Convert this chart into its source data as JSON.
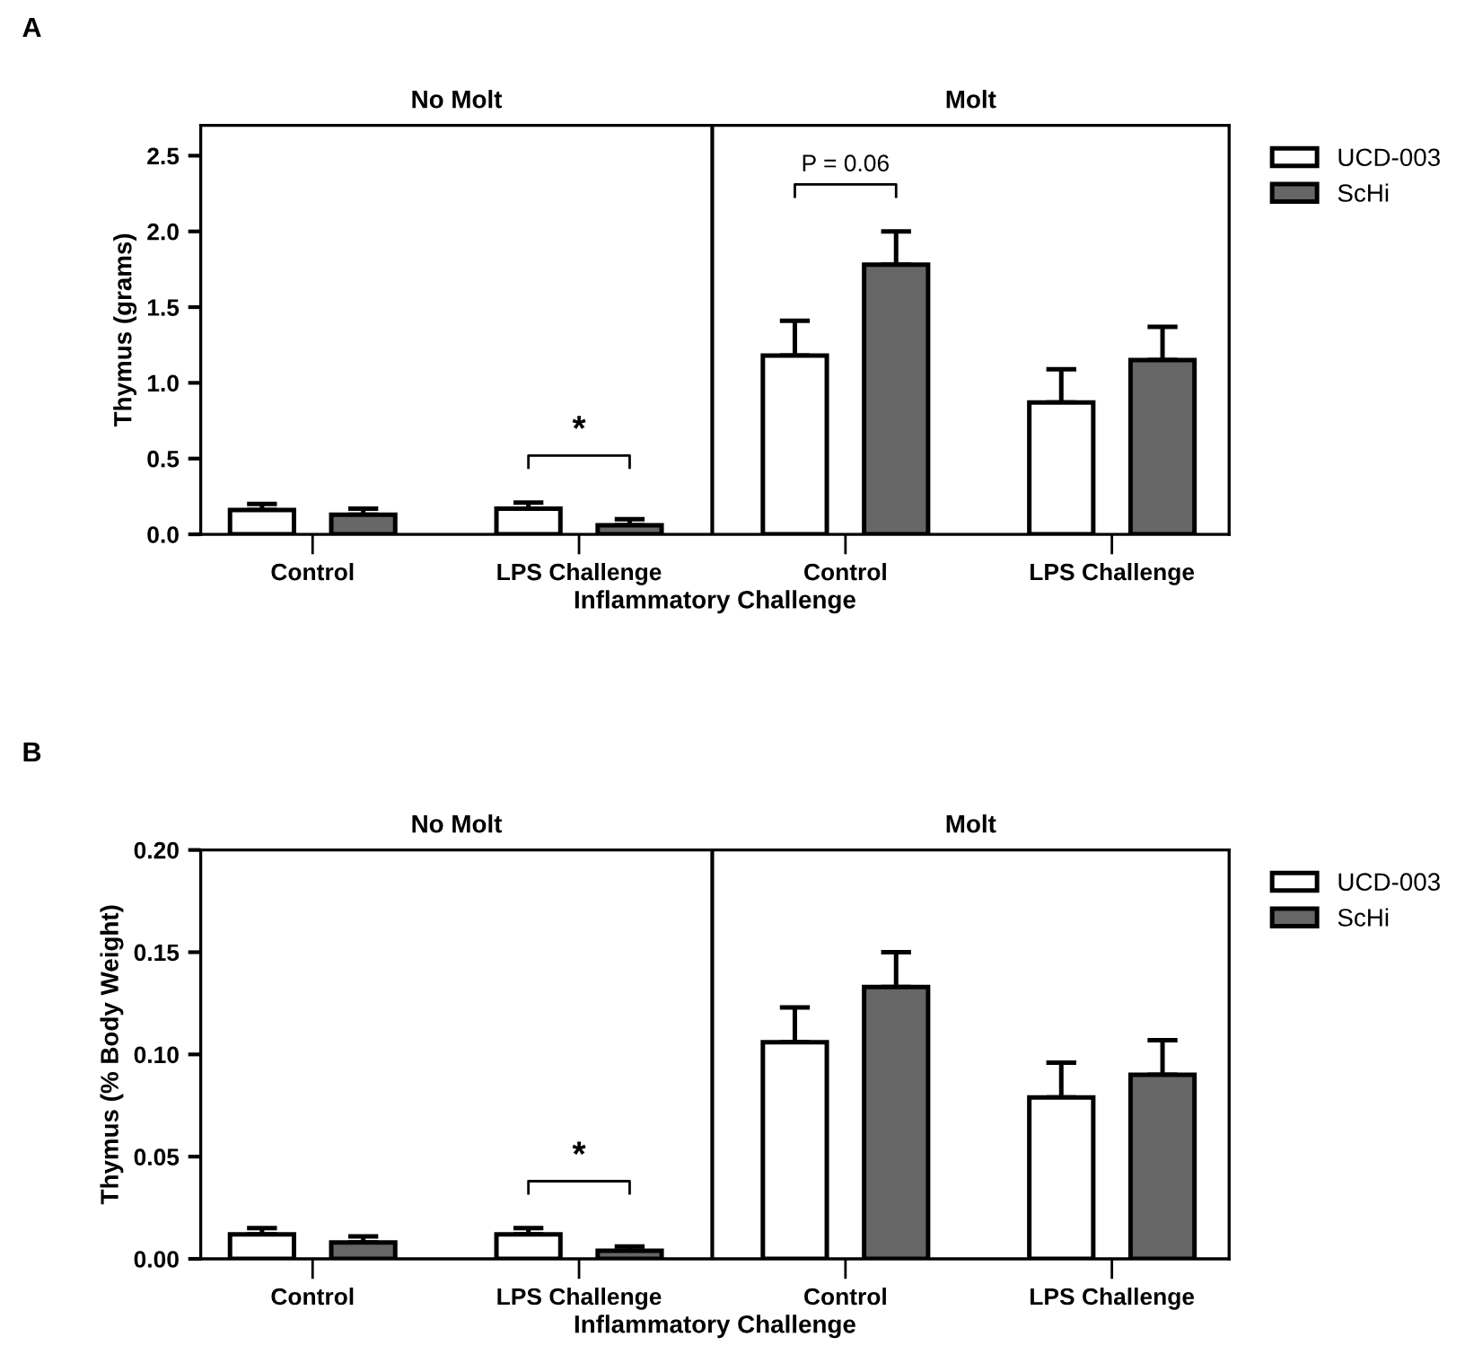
{
  "chart_data": [
    {
      "type": "bar",
      "title": "A",
      "xlabel": "Inflammatory Challenge",
      "ylabel": "Thymus (grams)",
      "categories": [
        "Control",
        "LPS Challenge",
        "Control",
        "LPS Challenge"
      ],
      "series": [
        {
          "name": "UCD-003",
          "color": "#ffffff",
          "values": [
            0.16,
            0.17,
            1.18,
            0.87
          ],
          "errors": [
            0.04,
            0.04,
            0.23,
            0.22
          ]
        },
        {
          "name": "ScHi",
          "color": "#666666",
          "values": [
            0.13,
            0.06,
            1.78,
            1.15
          ],
          "errors": [
            0.04,
            0.04,
            0.22,
            0.22
          ]
        }
      ],
      "ylim": [
        0,
        2.7
      ],
      "yticks": [
        {
          "value": 0,
          "label": "0.0"
        },
        0.5,
        {
          "value": 1,
          "label": "1.0"
        },
        1.5,
        {
          "value": 2,
          "label": "2.0"
        },
        2.5
      ],
      "annotations": [
        "No Molt",
        "Molt",
        "*",
        "P = 0.06"
      ],
      "legend": "top right",
      "grid": false
    },
    {
      "type": "bar",
      "title": "B",
      "xlabel": "Inflammatory Challenge",
      "ylabel": "Thymus (% Body Weight)",
      "categories": [
        "Control",
        "LPS Challenge",
        "Control",
        "LPS Challenge"
      ],
      "series": [
        {
          "name": "UCD-003",
          "color": "#ffffff",
          "values": [
            0.012,
            0.012,
            0.106,
            0.079
          ],
          "errors": [
            0.003,
            0.003,
            0.017,
            0.017
          ]
        },
        {
          "name": "ScHi",
          "color": "#666666",
          "values": [
            0.008,
            0.004,
            0.133,
            0.09
          ],
          "errors": [
            0.003,
            0.002,
            0.017,
            0.017
          ]
        }
      ],
      "ylim": [
        0,
        0.2
      ],
      "yticks": [
        {
          "value": 0,
          "label": "0.00"
        },
        0.05,
        {
          "value": 0.1,
          "label": "0.10"
        },
        0.15,
        {
          "value": 0.2,
          "label": "0.20"
        }
      ],
      "annotations": [
        "No Molt",
        "Molt",
        "*"
      ],
      "legend": "top right",
      "grid": false
    }
  ]
}
